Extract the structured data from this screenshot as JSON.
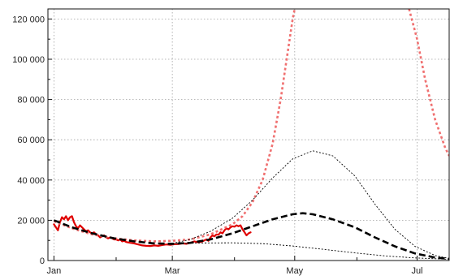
{
  "chart_data": {
    "type": "line",
    "title": "",
    "xlabel": "",
    "ylabel": "",
    "x_axis": {
      "type": "date",
      "range": [
        "2020-12-29",
        "2021-07-17"
      ],
      "major_ticks": [
        {
          "date": "2021-01-01",
          "label": "Jan"
        },
        {
          "date": "2021-03-01",
          "label": "Mar"
        },
        {
          "date": "2021-05-01",
          "label": "May"
        },
        {
          "date": "2021-07-01",
          "label": "Jul"
        }
      ],
      "minor_ticks": [
        "2021-02-01",
        "2021-04-01",
        "2021-06-01"
      ]
    },
    "y_axis": {
      "range": [
        0,
        125000
      ],
      "ticks": [
        {
          "value": 0,
          "label": "0"
        },
        {
          "value": 20000,
          "label": "20 000"
        },
        {
          "value": 40000,
          "label": "40 000"
        },
        {
          "value": 60000,
          "label": "60 000"
        },
        {
          "value": 80000,
          "label": "80 000"
        },
        {
          "value": 100000,
          "label": "100 000"
        },
        {
          "value": 120000,
          "label": "120 000"
        }
      ]
    },
    "grid": true,
    "legend": "none",
    "series": [
      {
        "style": "solid",
        "color": "#e00000",
        "points": [
          [
            "2021-01-01",
            18000
          ],
          [
            "2021-01-02",
            16500
          ],
          [
            "2021-01-03",
            15000
          ],
          [
            "2021-01-04",
            19000
          ],
          [
            "2021-01-05",
            21500
          ],
          [
            "2021-01-06",
            20500
          ],
          [
            "2021-01-07",
            22000
          ],
          [
            "2021-01-08",
            20000
          ],
          [
            "2021-01-09",
            21500
          ],
          [
            "2021-01-10",
            22000
          ],
          [
            "2021-01-11",
            19000
          ],
          [
            "2021-01-12",
            17000
          ],
          [
            "2021-01-13",
            16000
          ],
          [
            "2021-01-14",
            17500
          ],
          [
            "2021-01-15",
            16500
          ],
          [
            "2021-01-16",
            15500
          ],
          [
            "2021-01-17",
            14500
          ],
          [
            "2021-01-18",
            15000
          ],
          [
            "2021-01-19",
            14000
          ],
          [
            "2021-01-20",
            13500
          ],
          [
            "2021-01-21",
            14000
          ],
          [
            "2021-01-22",
            13000
          ],
          [
            "2021-01-23",
            12500
          ],
          [
            "2021-01-24",
            11500
          ],
          [
            "2021-01-25",
            12000
          ],
          [
            "2021-01-26",
            12500
          ],
          [
            "2021-01-27",
            11500
          ],
          [
            "2021-01-28",
            11000
          ],
          [
            "2021-01-29",
            11500
          ],
          [
            "2021-01-30",
            11000
          ],
          [
            "2021-01-31",
            10500
          ],
          [
            "2021-02-01",
            10500
          ],
          [
            "2021-02-02",
            10000
          ],
          [
            "2021-02-03",
            10500
          ],
          [
            "2021-02-04",
            9500
          ],
          [
            "2021-02-05",
            9800
          ],
          [
            "2021-02-06",
            9200
          ],
          [
            "2021-02-07",
            9000
          ],
          [
            "2021-02-08",
            8800
          ],
          [
            "2021-02-10",
            8500
          ],
          [
            "2021-02-12",
            8000
          ],
          [
            "2021-02-14",
            7500
          ],
          [
            "2021-02-16",
            7300
          ],
          [
            "2021-02-18",
            7200
          ],
          [
            "2021-02-20",
            7500
          ],
          [
            "2021-02-22",
            7300
          ],
          [
            "2021-02-24",
            7700
          ],
          [
            "2021-02-26",
            8000
          ],
          [
            "2021-02-28",
            7800
          ],
          [
            "2021-03-02",
            8100
          ],
          [
            "2021-03-04",
            8200
          ],
          [
            "2021-03-06",
            8500
          ],
          [
            "2021-03-08",
            8300
          ],
          [
            "2021-03-10",
            8800
          ],
          [
            "2021-03-12",
            9500
          ],
          [
            "2021-03-14",
            9000
          ],
          [
            "2021-03-16",
            9500
          ],
          [
            "2021-03-18",
            10500
          ],
          [
            "2021-03-19",
            9800
          ],
          [
            "2021-03-20",
            11500
          ],
          [
            "2021-03-21",
            12500
          ],
          [
            "2021-03-22",
            12000
          ],
          [
            "2021-03-23",
            13000
          ],
          [
            "2021-03-24",
            12800
          ],
          [
            "2021-03-25",
            14000
          ],
          [
            "2021-03-26",
            13500
          ],
          [
            "2021-03-27",
            15000
          ],
          [
            "2021-03-28",
            16000
          ],
          [
            "2021-03-29",
            15500
          ],
          [
            "2021-03-30",
            16500
          ],
          [
            "2021-03-31",
            17000
          ],
          [
            "2021-04-01",
            16800
          ],
          [
            "2021-04-02",
            17500
          ],
          [
            "2021-04-03",
            17000
          ],
          [
            "2021-04-04",
            17500
          ],
          [
            "2021-04-05",
            15500
          ],
          [
            "2021-04-06",
            14000
          ],
          [
            "2021-04-07",
            12500
          ],
          [
            "2021-04-08",
            13500
          ],
          [
            "2021-04-09",
            14000
          ]
        ]
      },
      {
        "style": "dotted",
        "color": "#f07070",
        "points": [
          [
            "2021-01-01",
            19500
          ],
          [
            "2021-01-10",
            16000
          ],
          [
            "2021-01-20",
            13000
          ],
          [
            "2021-01-31",
            11000
          ],
          [
            "2021-02-10",
            10000
          ],
          [
            "2021-02-20",
            9500
          ],
          [
            "2021-03-01",
            9800
          ],
          [
            "2021-03-10",
            10500
          ],
          [
            "2021-03-20",
            13000
          ],
          [
            "2021-03-31",
            18000
          ],
          [
            "2021-04-05",
            22000
          ],
          [
            "2021-04-10",
            29000
          ],
          [
            "2021-04-15",
            40000
          ],
          [
            "2021-04-20",
            58000
          ],
          [
            "2021-04-24",
            80000
          ],
          [
            "2021-04-27",
            100000
          ],
          [
            "2021-04-30",
            120000
          ],
          [
            "2021-05-01",
            125000
          ]
        ]
      },
      {
        "style": "dotted",
        "color": "#f07070",
        "points": [
          [
            "2021-06-27",
            125000
          ],
          [
            "2021-07-01",
            110000
          ],
          [
            "2021-07-05",
            90000
          ],
          [
            "2021-07-10",
            70000
          ],
          [
            "2021-07-15",
            56000
          ],
          [
            "2021-07-17",
            52000
          ]
        ]
      },
      {
        "style": "dashed",
        "color": "#000000",
        "points": [
          [
            "2021-01-01",
            20000
          ],
          [
            "2021-01-10",
            16500
          ],
          [
            "2021-01-20",
            13500
          ],
          [
            "2021-01-31",
            11000
          ],
          [
            "2021-02-10",
            9500
          ],
          [
            "2021-02-20",
            8500
          ],
          [
            "2021-03-01",
            8300
          ],
          [
            "2021-03-10",
            8800
          ],
          [
            "2021-03-20",
            10500
          ],
          [
            "2021-03-31",
            13500
          ],
          [
            "2021-04-10",
            17000
          ],
          [
            "2021-04-20",
            20500
          ],
          [
            "2021-04-30",
            23000
          ],
          [
            "2021-05-05",
            23500
          ],
          [
            "2021-05-10",
            23000
          ],
          [
            "2021-05-20",
            20500
          ],
          [
            "2021-05-31",
            16500
          ],
          [
            "2021-06-10",
            11500
          ],
          [
            "2021-06-20",
            7000
          ],
          [
            "2021-06-30",
            3500
          ],
          [
            "2021-07-10",
            1500
          ],
          [
            "2021-07-17",
            800
          ]
        ]
      },
      {
        "style": "fine-dotted",
        "color": "#000000",
        "points": [
          [
            "2021-03-01",
            8500
          ],
          [
            "2021-03-10",
            10500
          ],
          [
            "2021-03-20",
            14500
          ],
          [
            "2021-03-31",
            21000
          ],
          [
            "2021-04-10",
            30000
          ],
          [
            "2021-04-20",
            41000
          ],
          [
            "2021-04-30",
            50500
          ],
          [
            "2021-05-10",
            54500
          ],
          [
            "2021-05-20",
            52000
          ],
          [
            "2021-05-31",
            42000
          ],
          [
            "2021-06-10",
            28000
          ],
          [
            "2021-06-20",
            15500
          ],
          [
            "2021-06-30",
            7000
          ],
          [
            "2021-07-10",
            2500
          ],
          [
            "2021-07-17",
            1000
          ]
        ]
      },
      {
        "style": "fine-dotted",
        "color": "#000000",
        "points": [
          [
            "2021-03-01",
            8300
          ],
          [
            "2021-03-15",
            8700
          ],
          [
            "2021-03-31",
            8800
          ],
          [
            "2021-04-15",
            8400
          ],
          [
            "2021-04-30",
            7200
          ],
          [
            "2021-05-15",
            5600
          ],
          [
            "2021-05-31",
            3800
          ],
          [
            "2021-06-15",
            2300
          ],
          [
            "2021-06-30",
            1300
          ],
          [
            "2021-07-17",
            600
          ]
        ]
      }
    ]
  }
}
